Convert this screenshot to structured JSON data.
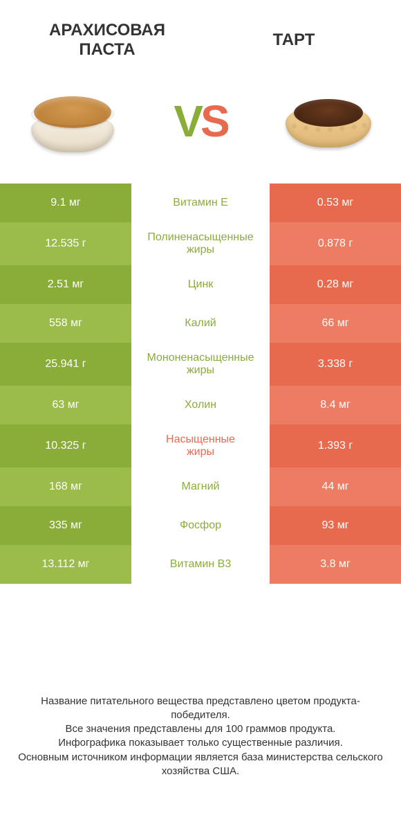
{
  "colors": {
    "left_primary": "#8aad3a",
    "left_alt": "#9bbb4a",
    "right_primary": "#e86a4e",
    "right_alt": "#ec7c62",
    "mid_green": "#8aad3a",
    "mid_red": "#e86a4e",
    "bg": "#ffffff"
  },
  "header": {
    "left_title": "АРАХИСОВАЯ\nПАСТА",
    "right_title": "ТАРТ",
    "vs_v": "V",
    "vs_s": "S"
  },
  "rows": [
    {
      "left": "9.1 мг",
      "mid": "Витамин E",
      "right": "0.53 мг",
      "mid_color": "green",
      "tall": false
    },
    {
      "left": "12.535 г",
      "mid": "Полиненасыщенные\nжиры",
      "right": "0.878 г",
      "mid_color": "green",
      "tall": true
    },
    {
      "left": "2.51 мг",
      "mid": "Цинк",
      "right": "0.28 мг",
      "mid_color": "green",
      "tall": false
    },
    {
      "left": "558 мг",
      "mid": "Калий",
      "right": "66 мг",
      "mid_color": "green",
      "tall": false
    },
    {
      "left": "25.941 г",
      "mid": "Мононенасыщенные\nжиры",
      "right": "3.338 г",
      "mid_color": "green",
      "tall": true
    },
    {
      "left": "63 мг",
      "mid": "Холин",
      "right": "8.4 мг",
      "mid_color": "green",
      "tall": false
    },
    {
      "left": "10.325 г",
      "mid": "Насыщенные\nжиры",
      "right": "1.393 г",
      "mid_color": "red",
      "tall": true
    },
    {
      "left": "168 мг",
      "mid": "Магний",
      "right": "44 мг",
      "mid_color": "green",
      "tall": false
    },
    {
      "left": "335 мг",
      "mid": "Фосфор",
      "right": "93 мг",
      "mid_color": "green",
      "tall": false
    },
    {
      "left": "13.112 мг",
      "mid": "Витамин B3",
      "right": "3.8 мг",
      "mid_color": "green",
      "tall": false
    }
  ],
  "footer": {
    "l1": "Название питательного вещества представлено цветом продукта-победителя.",
    "l2": "Все значения представлены для 100 граммов продукта.",
    "l3": "Инфографика показывает только существенные различия.",
    "l4": "Основным источником информации является база министерства сельского хозяйства США."
  }
}
